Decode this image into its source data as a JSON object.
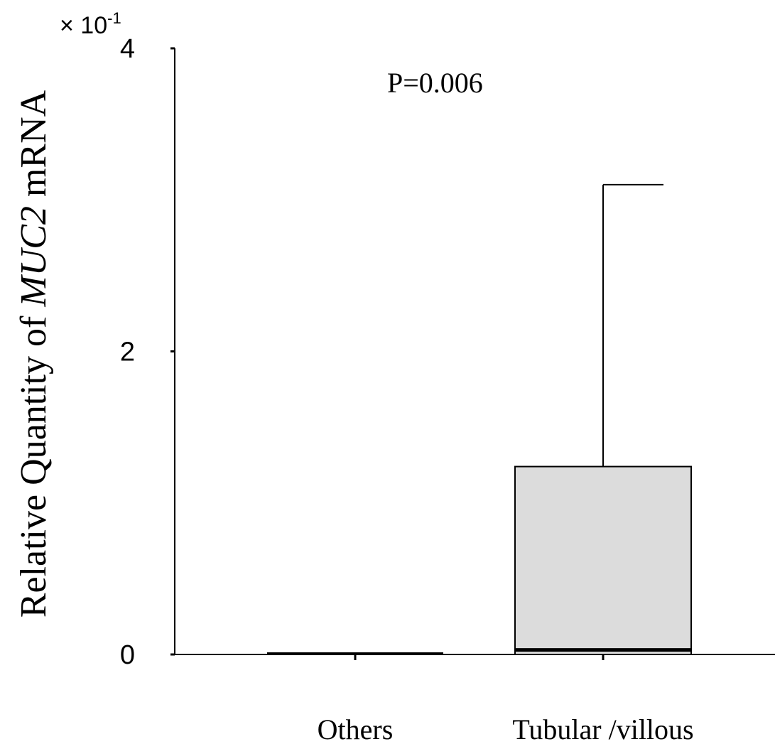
{
  "chart_data": {
    "type": "box",
    "ylabel_prefix": "Relative Quantity of ",
    "ylabel_gene": "MUC2",
    "ylabel_suffix": " mRNA",
    "y_multiplier_base": "× 10",
    "y_multiplier_exp": "-1",
    "annotation": "P=0.006",
    "ylim": [
      0,
      4
    ],
    "yticks": [
      0,
      2,
      4
    ],
    "categories": [
      "Others",
      "Tubular /villous"
    ],
    "boxes": [
      {
        "category": "Others",
        "q1": 0.0,
        "median": 0.0,
        "q3": 0.0,
        "whisker_low": 0.0,
        "whisker_high": 0.0,
        "fill": "#ffffff"
      },
      {
        "category": "Tubular /villous",
        "q1": 0.0,
        "median": 0.03,
        "q3": 1.24,
        "whisker_low": 0.0,
        "whisker_high": 3.1,
        "fill": "#dcdcdc"
      }
    ],
    "grid": false,
    "legend": "none"
  }
}
